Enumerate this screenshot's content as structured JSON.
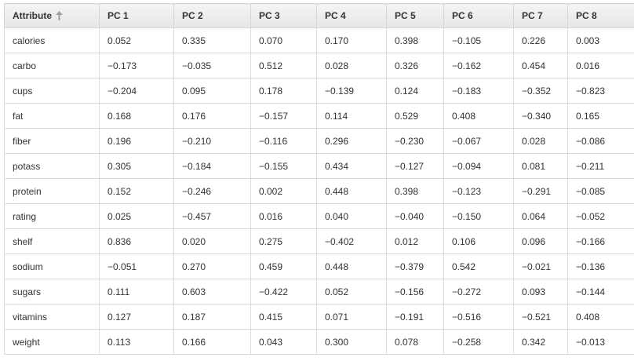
{
  "table": {
    "headers": [
      {
        "label": "Attribute",
        "sort_icon": "arrow-up-icon"
      },
      {
        "label": "PC 1"
      },
      {
        "label": "PC 2"
      },
      {
        "label": "PC 3"
      },
      {
        "label": "PC 4"
      },
      {
        "label": "PC 5"
      },
      {
        "label": "PC 6"
      },
      {
        "label": "PC 7"
      },
      {
        "label": "PC 8"
      }
    ],
    "rows": [
      [
        "calories",
        "0.052",
        "0.335",
        "0.070",
        "0.170",
        "0.398",
        "-0.105",
        "0.226",
        "0.003"
      ],
      [
        "carbo",
        "-0.173",
        "-0.035",
        "0.512",
        "0.028",
        "0.326",
        "-0.162",
        "0.454",
        "0.016"
      ],
      [
        "cups",
        "-0.204",
        "0.095",
        "0.178",
        "-0.139",
        "0.124",
        "-0.183",
        "-0.352",
        "-0.823"
      ],
      [
        "fat",
        "0.168",
        "0.176",
        "-0.157",
        "0.114",
        "0.529",
        "0.408",
        "-0.340",
        "0.165"
      ],
      [
        "fiber",
        "0.196",
        "-0.210",
        "-0.116",
        "0.296",
        "-0.230",
        "-0.067",
        "0.028",
        "-0.086"
      ],
      [
        "potass",
        "0.305",
        "-0.184",
        "-0.155",
        "0.434",
        "-0.127",
        "-0.094",
        "0.081",
        "-0.211"
      ],
      [
        "protein",
        "0.152",
        "-0.246",
        "0.002",
        "0.448",
        "0.398",
        "-0.123",
        "-0.291",
        "-0.085"
      ],
      [
        "rating",
        "0.025",
        "-0.457",
        "0.016",
        "0.040",
        "-0.040",
        "-0.150",
        "0.064",
        "-0.052"
      ],
      [
        "shelf",
        "0.836",
        "0.020",
        "0.275",
        "-0.402",
        "0.012",
        "0.106",
        "0.096",
        "-0.166"
      ],
      [
        "sodium",
        "-0.051",
        "0.270",
        "0.459",
        "0.448",
        "-0.379",
        "0.542",
        "-0.021",
        "-0.136"
      ],
      [
        "sugars",
        "0.111",
        "0.603",
        "-0.422",
        "0.052",
        "-0.156",
        "-0.272",
        "0.093",
        "-0.144"
      ],
      [
        "vitamins",
        "0.127",
        "0.187",
        "0.415",
        "0.071",
        "-0.191",
        "-0.516",
        "-0.521",
        "0.408"
      ],
      [
        "weight",
        "0.113",
        "0.166",
        "0.043",
        "0.300",
        "0.078",
        "-0.258",
        "0.342",
        "-0.013"
      ]
    ]
  }
}
